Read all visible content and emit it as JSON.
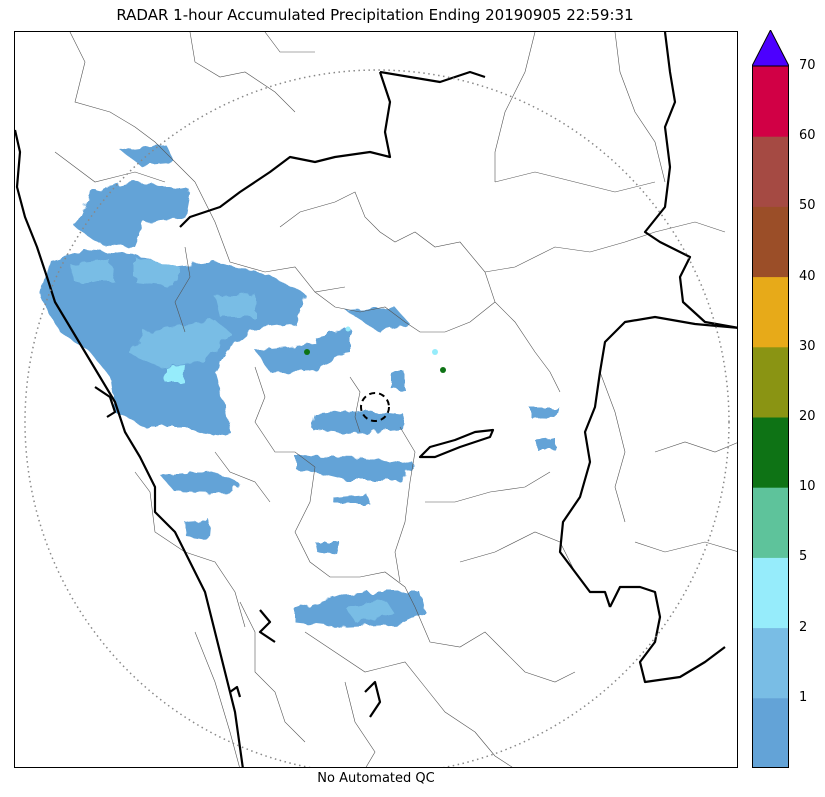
{
  "title": "RADAR 1-hour Accumulated Precipitation Ending 20190905 22:59:31",
  "footer": "No Automated QC",
  "colorbar": {
    "bins": [
      {
        "from": 0,
        "to": 1,
        "color": "#63a3d7"
      },
      {
        "from": 1,
        "to": 2,
        "color": "#79bde5"
      },
      {
        "from": 2,
        "to": 5,
        "color": "#96ecfb"
      },
      {
        "from": 5,
        "to": 10,
        "color": "#5ec39b"
      },
      {
        "from": 10,
        "to": 20,
        "color": "#0e7315"
      },
      {
        "from": 20,
        "to": 30,
        "color": "#8a9413"
      },
      {
        "from": 30,
        "to": 40,
        "color": "#e7aa19"
      },
      {
        "from": 40,
        "to": 50,
        "color": "#9b4e28"
      },
      {
        "from": 50,
        "to": 60,
        "color": "#a54a43"
      },
      {
        "from": 60,
        "to": 70,
        "color": "#d10045"
      }
    ],
    "over_color": "#4c00ff",
    "tick_labels": [
      "1",
      "2",
      "5",
      "10",
      "20",
      "30",
      "40",
      "50",
      "60",
      "70"
    ]
  },
  "map": {
    "radar_range_ring": "dotted",
    "radar_site_marker": "dashed-circle"
  }
}
